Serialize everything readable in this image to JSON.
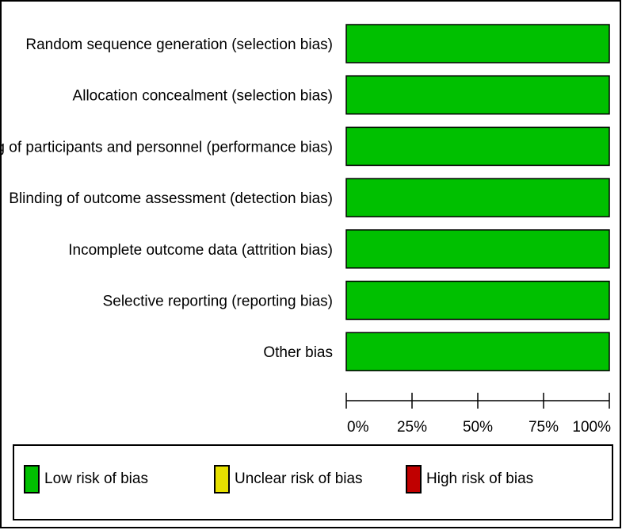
{
  "chart_data": {
    "type": "bar",
    "orientation": "horizontal",
    "stacked": true,
    "categories": [
      "Random sequence generation (selection bias)",
      "Allocation concealment (selection bias)",
      "Blinding of participants and personnel (performance bias)",
      "Blinding of outcome assessment (detection bias)",
      "Incomplete outcome data (attrition bias)",
      "Selective reporting (reporting bias)",
      "Other bias"
    ],
    "series": [
      {
        "name": "Low risk of bias",
        "color": "#00c000",
        "values": [
          100,
          100,
          100,
          100,
          100,
          100,
          100
        ]
      },
      {
        "name": "Unclear risk of bias",
        "color": "#e6e000",
        "values": [
          0,
          0,
          0,
          0,
          0,
          0,
          0
        ]
      },
      {
        "name": "High risk of bias",
        "color": "#c00000",
        "values": [
          0,
          0,
          0,
          0,
          0,
          0,
          0
        ]
      }
    ],
    "xlim": [
      0,
      100
    ],
    "xticks": [
      0,
      25,
      50,
      75,
      100
    ],
    "xtick_labels": [
      "0%",
      "25%",
      "50%",
      "75%",
      "100%"
    ],
    "grid": false,
    "legend_position": "bottom",
    "title": "",
    "xlabel": "",
    "ylabel": ""
  }
}
